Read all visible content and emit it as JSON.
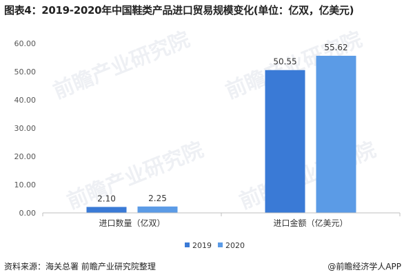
{
  "title": "图表4：2019-2020年中国鞋类产品进口贸易规模变化(单位：亿双，亿美元)",
  "source": "资料来源：海关总署 前瞻产业研究院整理",
  "credit": "@前瞻经济学人APP",
  "watermark": "前瞻产业研究院",
  "colors": {
    "2019": "#3a7ad6",
    "2020": "#5b9be6",
    "axis": "#bfbfbf",
    "grid": "#e6e6e6"
  },
  "chart_data": {
    "type": "bar",
    "categories": [
      "进口数量（亿双）",
      "进口金额（亿美元）"
    ],
    "series": [
      {
        "name": "2019",
        "values": [
          2.1,
          50.55
        ]
      },
      {
        "name": "2020",
        "values": [
          2.25,
          55.62
        ]
      }
    ],
    "data_labels": [
      [
        "2.10",
        "50.55"
      ],
      [
        "2.25",
        "55.62"
      ]
    ],
    "yticks": [
      "0.00",
      "10.00",
      "20.00",
      "30.00",
      "40.00",
      "50.00",
      "60.00"
    ],
    "ylim": [
      0,
      60
    ],
    "xlabel": "",
    "ylabel": "",
    "legend_position": "bottom-center",
    "grid": false
  }
}
